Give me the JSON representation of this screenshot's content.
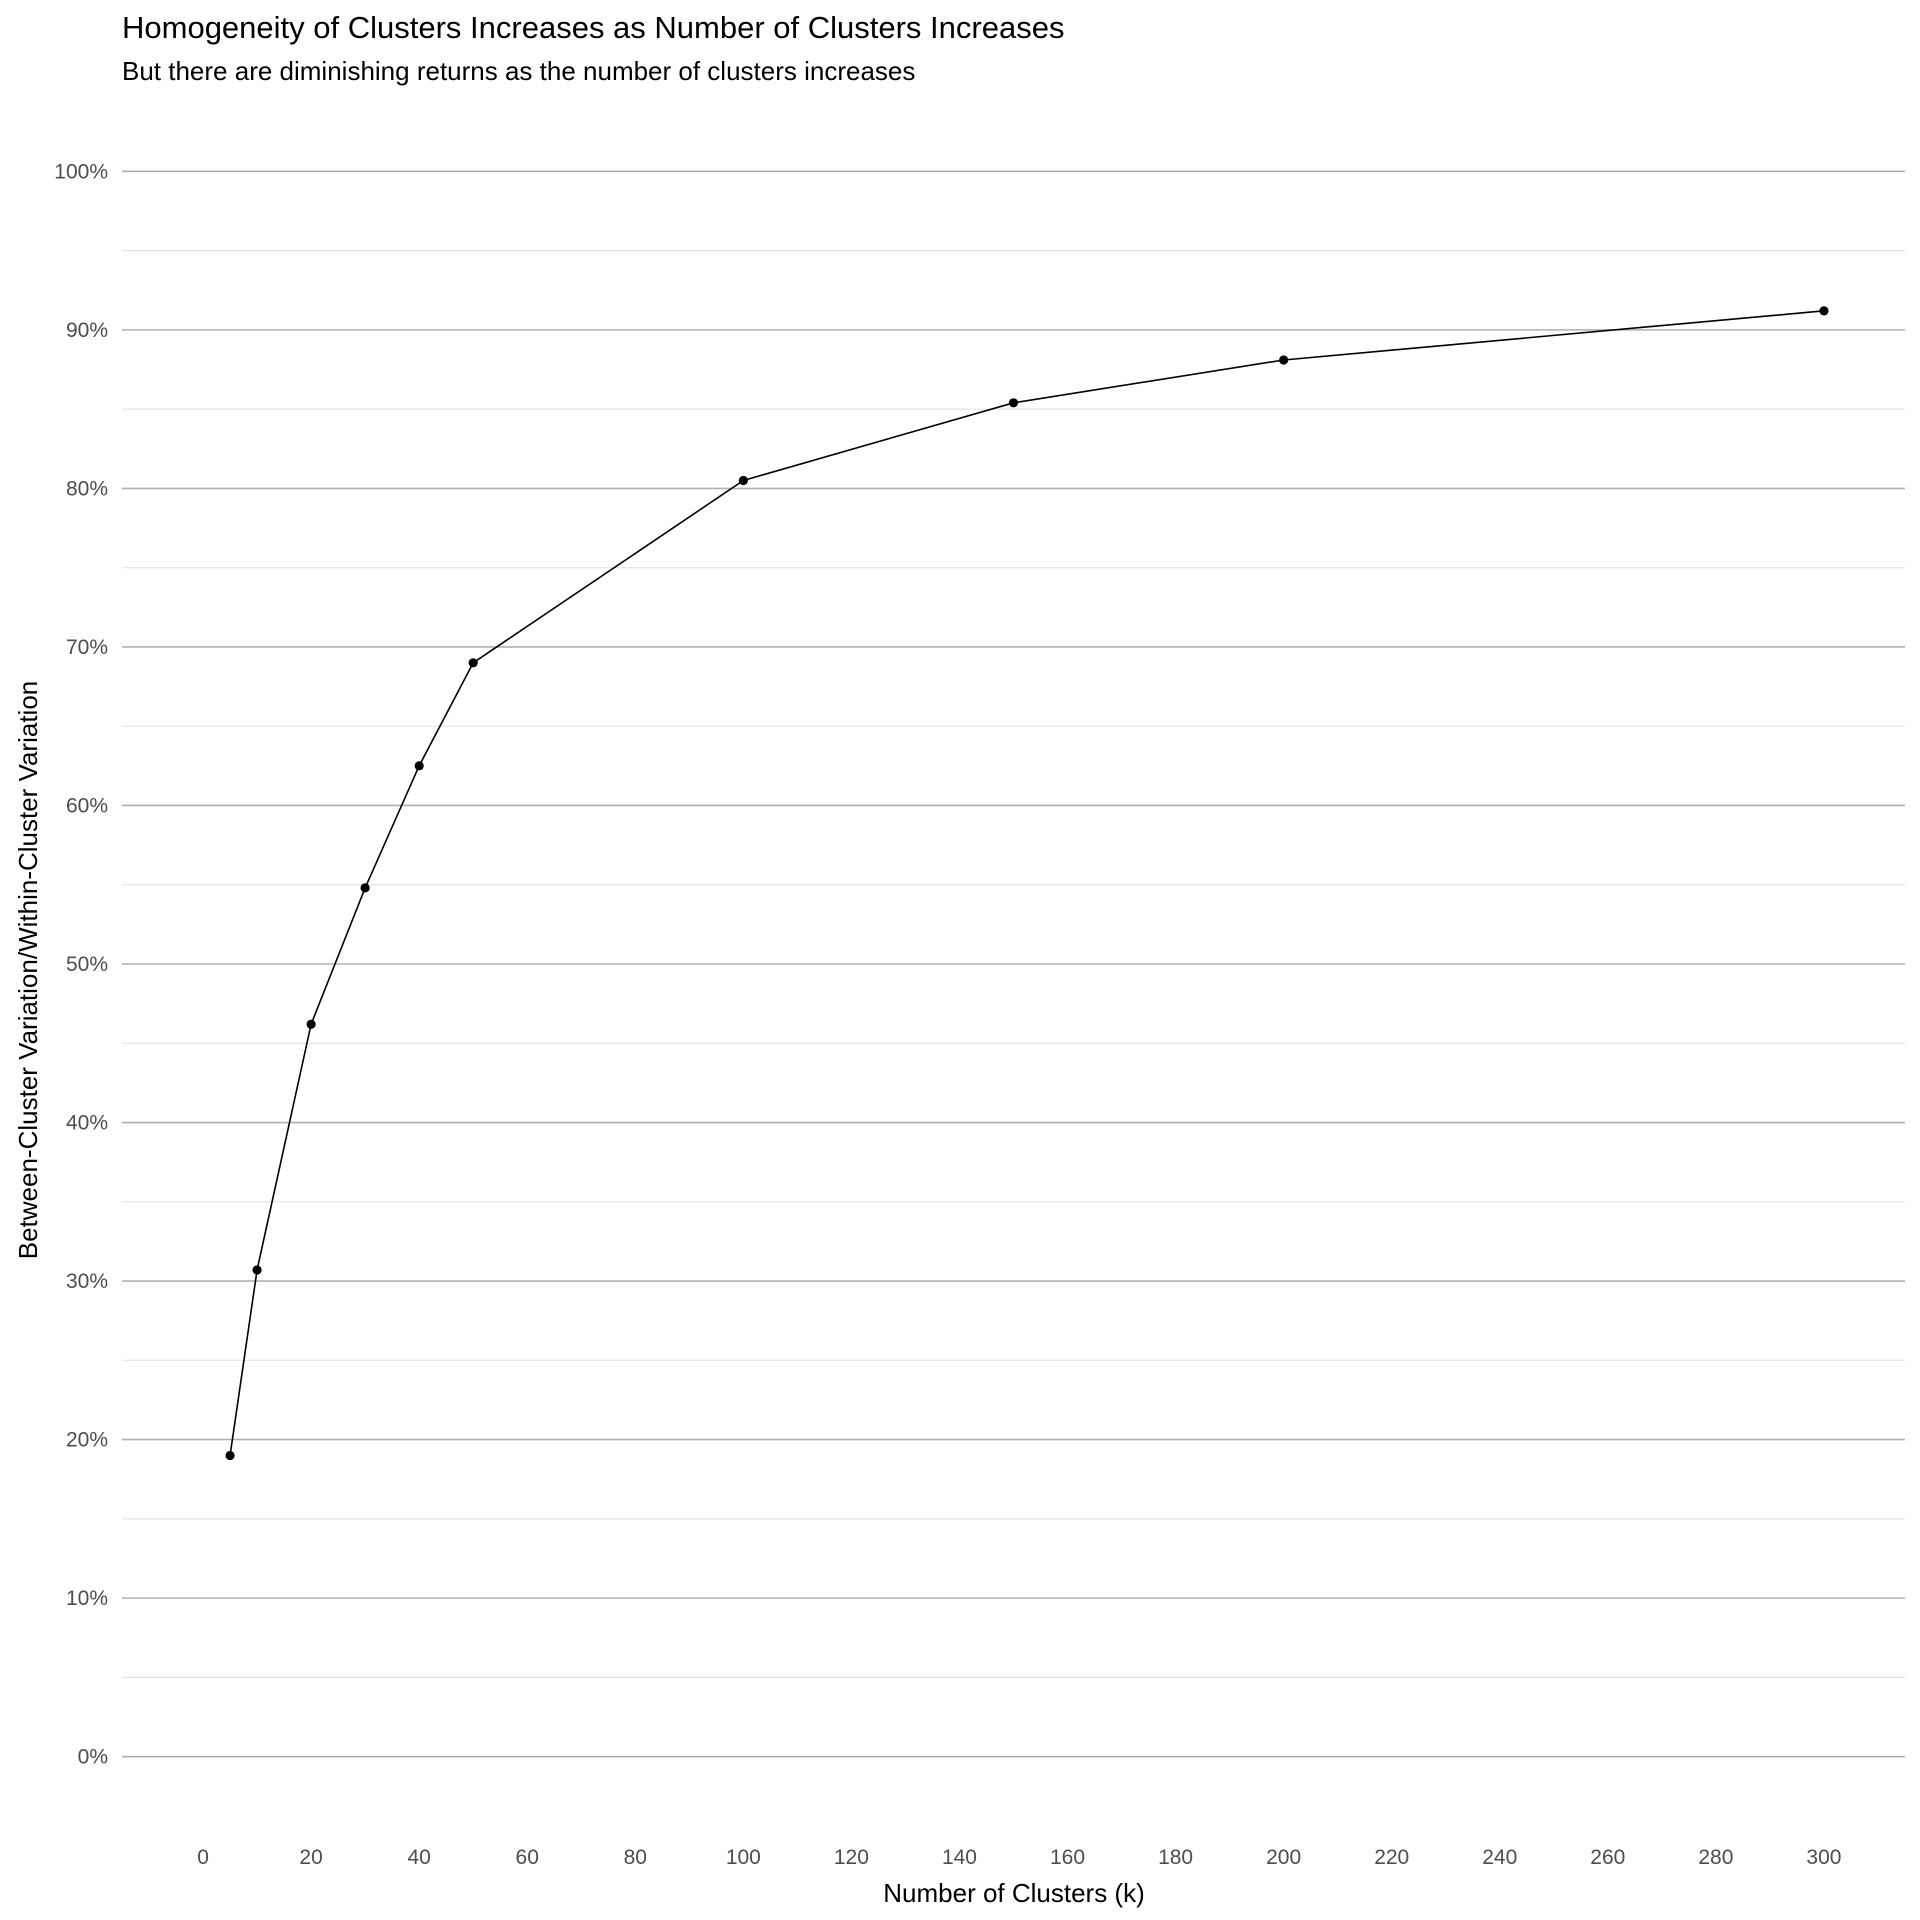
{
  "chart_data": {
    "type": "line",
    "title": "Homogeneity of Clusters Increases as Number of Clusters Increases",
    "subtitle": "But there are diminishing returns as the number of clusters increases",
    "xlabel": "Number of Clusters (k)",
    "ylabel": "Between-Cluster Variation/Within-Cluster Variation",
    "xlim": [
      -15,
      315
    ],
    "ylim": [
      -0.045,
      1.045
    ],
    "x_ticks": [
      0,
      20,
      40,
      60,
      80,
      100,
      120,
      140,
      160,
      180,
      200,
      220,
      240,
      260,
      280,
      300
    ],
    "x_tick_labels": [
      "0",
      "20",
      "40",
      "60",
      "80",
      "100",
      "120",
      "140",
      "160",
      "180",
      "200",
      "220",
      "240",
      "260",
      "280",
      "300"
    ],
    "y_ticks": [
      0,
      0.1,
      0.2,
      0.3,
      0.4,
      0.5,
      0.6,
      0.7,
      0.8,
      0.9,
      1.0
    ],
    "y_tick_labels": [
      "0%",
      "10%",
      "20%",
      "30%",
      "40%",
      "50%",
      "60%",
      "70%",
      "80%",
      "90%",
      "100%"
    ],
    "grid": "horizontal",
    "legend": "none",
    "series": [
      {
        "color": "#000000",
        "x": [
          5,
          10,
          20,
          30,
          40,
          50,
          100,
          150,
          200,
          300
        ],
        "y": [
          0.19,
          0.307,
          0.462,
          0.548,
          0.625,
          0.69,
          0.805,
          0.854,
          0.881,
          0.912
        ]
      }
    ]
  }
}
